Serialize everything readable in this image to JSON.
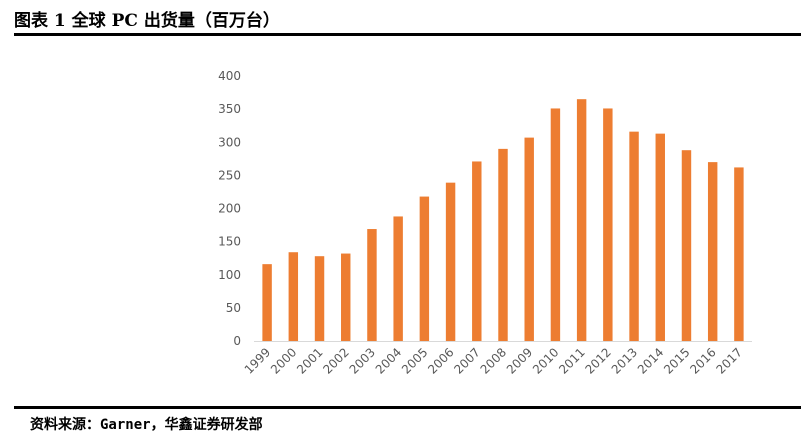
{
  "figure": {
    "title": "图表 1 全球 PC 出货量（百万台）",
    "source": "资料来源：Garner，华鑫证券研发部"
  },
  "chart_data": {
    "type": "bar",
    "categories": [
      "1999",
      "2000",
      "2001",
      "2002",
      "2003",
      "2004",
      "2005",
      "2006",
      "2007",
      "2008",
      "2009",
      "2010",
      "2011",
      "2012",
      "2013",
      "2014",
      "2015",
      "2016",
      "2017"
    ],
    "values": [
      116,
      134,
      128,
      132,
      169,
      188,
      218,
      239,
      271,
      290,
      307,
      351,
      365,
      351,
      316,
      313,
      288,
      270,
      262
    ],
    "ylim": [
      0,
      400
    ],
    "yticks": [
      "0",
      "50",
      "100",
      "150",
      "200",
      "250",
      "300",
      "350",
      "400"
    ],
    "grid": false,
    "bar_color": "#ED7D31",
    "axis_color": "#D9D9D9",
    "tick_color": "#595959"
  }
}
